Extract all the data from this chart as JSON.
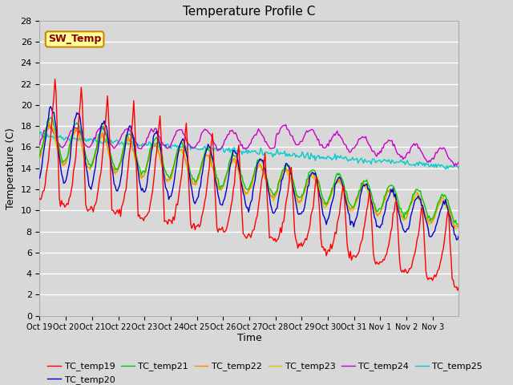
{
  "title": "Temperature Profile C",
  "xlabel": "Time",
  "ylabel": "Temperature (C)",
  "ylim": [
    0,
    28
  ],
  "yticks": [
    0,
    2,
    4,
    6,
    8,
    10,
    12,
    14,
    16,
    18,
    20,
    22,
    24,
    26,
    28
  ],
  "xtick_labels": [
    "Oct 19",
    "Oct 20",
    "Oct 21",
    "Oct 22",
    "Oct 23",
    "Oct 24",
    "Oct 25",
    "Oct 26",
    "Oct 27",
    "Oct 28",
    "Oct 29",
    "Oct 30",
    "Oct 31",
    "Nov 1",
    "Nov 2",
    "Nov 3"
  ],
  "series_colors": {
    "TC_temp19": "#ff0000",
    "TC_temp20": "#0000cc",
    "TC_temp21": "#00cc00",
    "TC_temp22": "#ff8800",
    "TC_temp23": "#cccc00",
    "TC_temp24": "#cc00cc",
    "TC_temp25": "#00cccc"
  },
  "sw_temp_label": "SW_Temp",
  "sw_temp_box_color": "#ffff99",
  "sw_temp_box_edge": "#cc8800",
  "background_color": "#d8d8d8",
  "plot_bg_color": "#d8d8d8",
  "grid_color": "#ffffff",
  "title_fontsize": 11,
  "axis_label_fontsize": 9,
  "tick_fontsize": 8,
  "legend_fontsize": 8
}
